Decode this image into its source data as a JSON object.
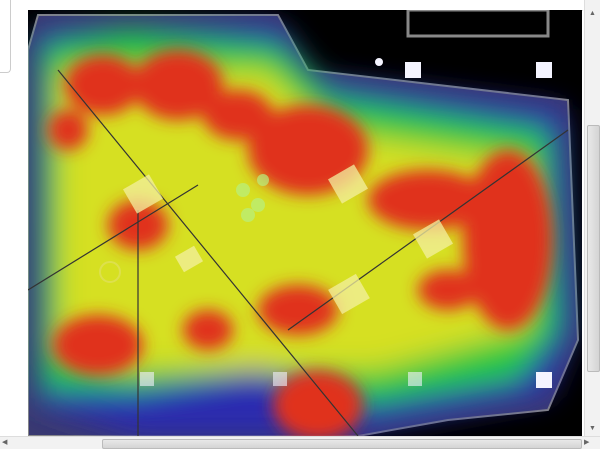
{
  "heatmap": {
    "colors": {
      "background": "#000000",
      "low": "#2a2aa8",
      "mid_low": "#22cc44",
      "mid": "#d8e020",
      "high": "#e02a18"
    },
    "icons": {
      "scroll_up": "▲",
      "scroll_down": "▼",
      "scroll_left": "◀",
      "scroll_right": "▶"
    }
  }
}
